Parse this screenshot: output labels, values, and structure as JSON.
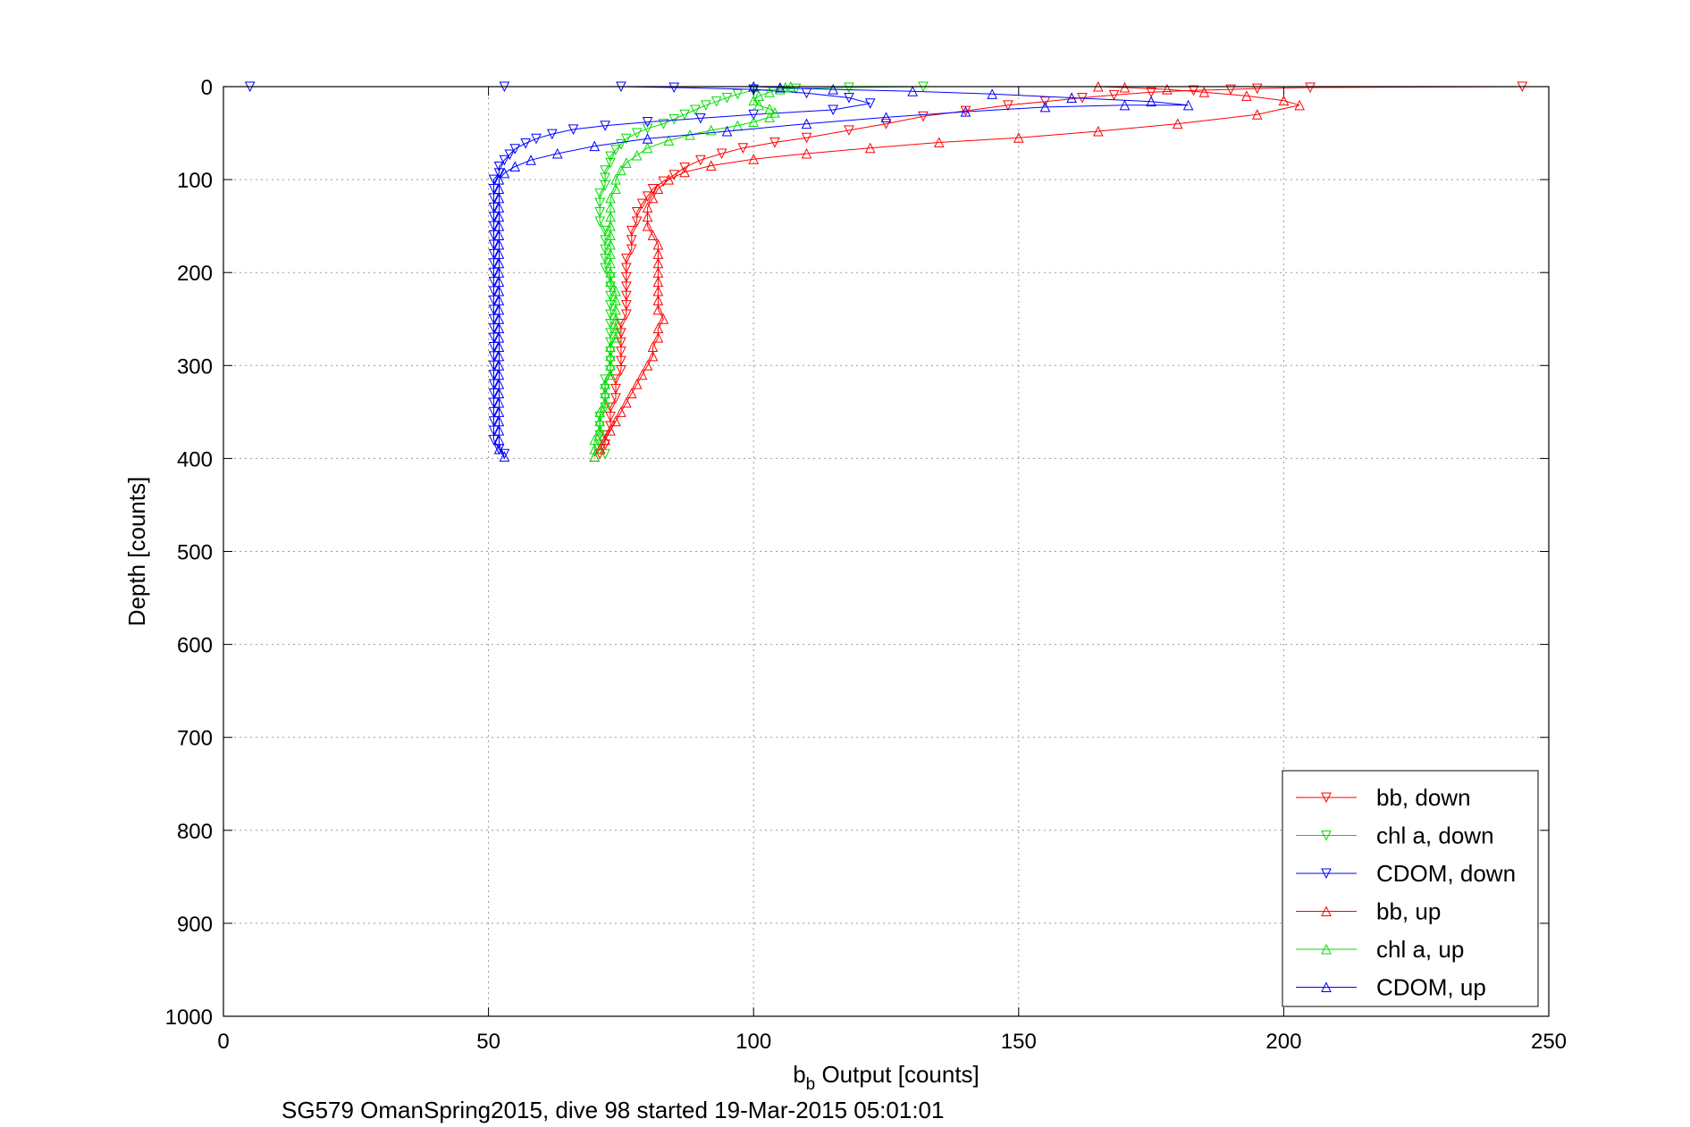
{
  "chart_data": {
    "type": "scatter",
    "xlabel_main": "b",
    "xlabel_sub": "b",
    "xlabel_rest": " Output [counts]",
    "ylabel": "Depth [counts]",
    "caption": "SG579 OmanSpring2015, dive 98 started 19-Mar-2015 05:01:01",
    "xlim": [
      0,
      250
    ],
    "ylim": [
      0,
      1000
    ],
    "y_reversed": true,
    "xticks": [
      0,
      50,
      100,
      150,
      200,
      250
    ],
    "xtick_labels": [
      "0",
      "50",
      "100",
      "150",
      "200",
      "250"
    ],
    "yticks": [
      0,
      100,
      200,
      300,
      400,
      500,
      600,
      700,
      800,
      900,
      1000
    ],
    "ytick_labels": [
      "0",
      "100",
      "200",
      "300",
      "400",
      "500",
      "600",
      "700",
      "800",
      "900",
      "1000"
    ],
    "grid": true,
    "legend_position": "bottom-right",
    "series": [
      {
        "name": "bb, down",
        "color": "#ff0000",
        "marker": "triangle-down",
        "points": [
          [
            245,
            0
          ],
          [
            205,
            1
          ],
          [
            195,
            2
          ],
          [
            190,
            3
          ],
          [
            183,
            4
          ],
          [
            175,
            6
          ],
          [
            168,
            9
          ],
          [
            162,
            12
          ],
          [
            155,
            16
          ],
          [
            148,
            20
          ],
          [
            140,
            26
          ],
          [
            132,
            32
          ],
          [
            125,
            40
          ],
          [
            118,
            47
          ],
          [
            110,
            55
          ],
          [
            104,
            60
          ],
          [
            98,
            66
          ],
          [
            94,
            72
          ],
          [
            90,
            79
          ],
          [
            87,
            87
          ],
          [
            85,
            95
          ],
          [
            83,
            102
          ],
          [
            81,
            110
          ],
          [
            80,
            118
          ],
          [
            79,
            126
          ],
          [
            78,
            135
          ],
          [
            78,
            145
          ],
          [
            77,
            155
          ],
          [
            77,
            165
          ],
          [
            77,
            175
          ],
          [
            76,
            185
          ],
          [
            76,
            195
          ],
          [
            76,
            205
          ],
          [
            76,
            215
          ],
          [
            76,
            225
          ],
          [
            76,
            235
          ],
          [
            76,
            245
          ],
          [
            75,
            255
          ],
          [
            75,
            265
          ],
          [
            75,
            275
          ],
          [
            75,
            285
          ],
          [
            75,
            295
          ],
          [
            75,
            305
          ],
          [
            74,
            315
          ],
          [
            74,
            325
          ],
          [
            74,
            335
          ],
          [
            73,
            345
          ],
          [
            73,
            355
          ],
          [
            73,
            365
          ],
          [
            72,
            375
          ],
          [
            72,
            385
          ],
          [
            71,
            395
          ]
        ]
      },
      {
        "name": "chl a, down",
        "color": "#00dd00",
        "marker": "triangle-down",
        "points": [
          [
            132,
            0
          ],
          [
            118,
            1
          ],
          [
            108,
            2
          ],
          [
            100,
            4
          ],
          [
            97,
            8
          ],
          [
            95,
            12
          ],
          [
            93,
            16
          ],
          [
            91,
            20
          ],
          [
            89,
            25
          ],
          [
            87,
            30
          ],
          [
            85,
            35
          ],
          [
            83,
            40
          ],
          [
            80,
            45
          ],
          [
            78,
            50
          ],
          [
            76,
            56
          ],
          [
            75,
            62
          ],
          [
            74,
            68
          ],
          [
            73,
            75
          ],
          [
            73,
            82
          ],
          [
            72,
            90
          ],
          [
            72,
            98
          ],
          [
            72,
            106
          ],
          [
            71,
            115
          ],
          [
            71,
            125
          ],
          [
            71,
            135
          ],
          [
            71,
            145
          ],
          [
            72,
            155
          ],
          [
            72,
            165
          ],
          [
            72,
            175
          ],
          [
            72,
            185
          ],
          [
            72,
            195
          ],
          [
            73,
            205
          ],
          [
            73,
            215
          ],
          [
            73,
            225
          ],
          [
            73,
            235
          ],
          [
            73,
            245
          ],
          [
            73,
            255
          ],
          [
            73,
            265
          ],
          [
            73,
            275
          ],
          [
            73,
            285
          ],
          [
            73,
            295
          ],
          [
            73,
            305
          ],
          [
            72,
            315
          ],
          [
            72,
            325
          ],
          [
            72,
            335
          ],
          [
            72,
            345
          ],
          [
            71,
            355
          ],
          [
            71,
            365
          ],
          [
            71,
            375
          ],
          [
            71,
            385
          ],
          [
            72,
            395
          ]
        ]
      },
      {
        "name": "CDOM, down",
        "color": "#0000ff",
        "marker": "triangle-down",
        "points": [
          [
            5,
            0
          ],
          [
            53,
            0
          ],
          [
            75,
            0
          ],
          [
            85,
            1
          ],
          [
            100,
            3
          ],
          [
            110,
            7
          ],
          [
            118,
            12
          ],
          [
            122,
            18
          ],
          [
            115,
            25
          ],
          [
            100,
            30
          ],
          [
            90,
            34
          ],
          [
            80,
            38
          ],
          [
            72,
            42
          ],
          [
            66,
            46
          ],
          [
            62,
            51
          ],
          [
            59,
            56
          ],
          [
            57,
            61
          ],
          [
            55,
            67
          ],
          [
            54,
            73
          ],
          [
            53,
            79
          ],
          [
            52,
            86
          ],
          [
            52,
            93
          ],
          [
            51,
            100
          ],
          [
            51,
            110
          ],
          [
            51,
            120
          ],
          [
            51,
            130
          ],
          [
            51,
            140
          ],
          [
            51,
            150
          ],
          [
            51,
            160
          ],
          [
            51,
            170
          ],
          [
            51,
            180
          ],
          [
            51,
            190
          ],
          [
            51,
            200
          ],
          [
            51,
            210
          ],
          [
            51,
            220
          ],
          [
            51,
            230
          ],
          [
            51,
            240
          ],
          [
            51,
            250
          ],
          [
            51,
            260
          ],
          [
            51,
            270
          ],
          [
            51,
            280
          ],
          [
            51,
            290
          ],
          [
            51,
            300
          ],
          [
            51,
            310
          ],
          [
            51,
            320
          ],
          [
            51,
            330
          ],
          [
            51,
            340
          ],
          [
            51,
            350
          ],
          [
            51,
            360
          ],
          [
            51,
            370
          ],
          [
            51,
            380
          ],
          [
            52,
            390
          ],
          [
            53,
            395
          ]
        ]
      },
      {
        "name": "bb, up",
        "color": "#ff0000",
        "marker": "triangle-up",
        "points": [
          [
            70,
            398
          ],
          [
            71,
            390
          ],
          [
            72,
            380
          ],
          [
            73,
            370
          ],
          [
            74,
            360
          ],
          [
            75,
            350
          ],
          [
            76,
            340
          ],
          [
            77,
            330
          ],
          [
            78,
            320
          ],
          [
            79,
            310
          ],
          [
            80,
            300
          ],
          [
            81,
            290
          ],
          [
            81,
            280
          ],
          [
            82,
            270
          ],
          [
            82,
            260
          ],
          [
            83,
            250
          ],
          [
            82,
            240
          ],
          [
            82,
            230
          ],
          [
            82,
            220
          ],
          [
            82,
            210
          ],
          [
            82,
            200
          ],
          [
            82,
            190
          ],
          [
            82,
            180
          ],
          [
            82,
            170
          ],
          [
            81,
            160
          ],
          [
            80,
            150
          ],
          [
            80,
            140
          ],
          [
            80,
            130
          ],
          [
            81,
            120
          ],
          [
            82,
            110
          ],
          [
            84,
            100
          ],
          [
            87,
            92
          ],
          [
            92,
            85
          ],
          [
            100,
            78
          ],
          [
            110,
            72
          ],
          [
            122,
            66
          ],
          [
            135,
            60
          ],
          [
            150,
            55
          ],
          [
            165,
            48
          ],
          [
            180,
            40
          ],
          [
            195,
            30
          ],
          [
            203,
            20
          ],
          [
            200,
            15
          ],
          [
            193,
            10
          ],
          [
            185,
            6
          ],
          [
            178,
            3
          ],
          [
            170,
            1
          ],
          [
            165,
            0
          ]
        ]
      },
      {
        "name": "chl a, up",
        "color": "#00dd00",
        "marker": "triangle-up",
        "points": [
          [
            70,
            398
          ],
          [
            70,
            390
          ],
          [
            70,
            380
          ],
          [
            71,
            370
          ],
          [
            71,
            360
          ],
          [
            71,
            350
          ],
          [
            72,
            340
          ],
          [
            72,
            330
          ],
          [
            72,
            320
          ],
          [
            73,
            310
          ],
          [
            73,
            300
          ],
          [
            73,
            290
          ],
          [
            73,
            280
          ],
          [
            74,
            270
          ],
          [
            74,
            260
          ],
          [
            74,
            250
          ],
          [
            74,
            240
          ],
          [
            74,
            230
          ],
          [
            74,
            220
          ],
          [
            73,
            210
          ],
          [
            73,
            200
          ],
          [
            73,
            190
          ],
          [
            73,
            180
          ],
          [
            73,
            170
          ],
          [
            73,
            160
          ],
          [
            73,
            150
          ],
          [
            73,
            140
          ],
          [
            73,
            130
          ],
          [
            73,
            120
          ],
          [
            74,
            110
          ],
          [
            74,
            100
          ],
          [
            75,
            90
          ],
          [
            76,
            82
          ],
          [
            78,
            74
          ],
          [
            80,
            66
          ],
          [
            84,
            58
          ],
          [
            88,
            52
          ],
          [
            92,
            47
          ],
          [
            97,
            42
          ],
          [
            100,
            38
          ],
          [
            103,
            33
          ],
          [
            104,
            28
          ],
          [
            103,
            24
          ],
          [
            101,
            20
          ],
          [
            100,
            15
          ],
          [
            101,
            10
          ],
          [
            103,
            6
          ],
          [
            105,
            3
          ],
          [
            106,
            1
          ],
          [
            107,
            0
          ]
        ]
      },
      {
        "name": "CDOM, up",
        "color": "#0000ff",
        "marker": "triangle-up",
        "points": [
          [
            53,
            398
          ],
          [
            52,
            390
          ],
          [
            52,
            380
          ],
          [
            52,
            370
          ],
          [
            52,
            360
          ],
          [
            52,
            350
          ],
          [
            52,
            340
          ],
          [
            52,
            330
          ],
          [
            52,
            320
          ],
          [
            52,
            310
          ],
          [
            52,
            300
          ],
          [
            52,
            290
          ],
          [
            52,
            280
          ],
          [
            52,
            270
          ],
          [
            52,
            260
          ],
          [
            52,
            250
          ],
          [
            52,
            240
          ],
          [
            52,
            230
          ],
          [
            52,
            220
          ],
          [
            52,
            210
          ],
          [
            52,
            200
          ],
          [
            52,
            190
          ],
          [
            52,
            180
          ],
          [
            52,
            170
          ],
          [
            52,
            160
          ],
          [
            52,
            150
          ],
          [
            52,
            140
          ],
          [
            52,
            130
          ],
          [
            52,
            120
          ],
          [
            52,
            110
          ],
          [
            52,
            100
          ],
          [
            53,
            93
          ],
          [
            55,
            86
          ],
          [
            58,
            79
          ],
          [
            63,
            72
          ],
          [
            70,
            64
          ],
          [
            80,
            56
          ],
          [
            95,
            48
          ],
          [
            110,
            40
          ],
          [
            125,
            33
          ],
          [
            140,
            27
          ],
          [
            155,
            22
          ],
          [
            170,
            20
          ],
          [
            182,
            20
          ],
          [
            175,
            16
          ],
          [
            160,
            12
          ],
          [
            145,
            8
          ],
          [
            130,
            5
          ],
          [
            115,
            3
          ],
          [
            105,
            1
          ],
          [
            100,
            0
          ]
        ]
      }
    ]
  }
}
